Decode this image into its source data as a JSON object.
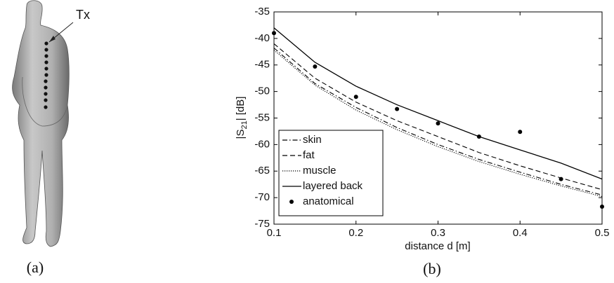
{
  "figure": {
    "annotation": "Tx",
    "panel_labels": [
      "(a)",
      "(b)"
    ]
  },
  "chart_data": {
    "type": "line",
    "xlabel": "distance d [m]",
    "ylabel": [
      "|S",
      "21",
      "| [dB]"
    ],
    "x": [
      0.1,
      0.15,
      0.2,
      0.25,
      0.3,
      0.35,
      0.4,
      0.45,
      0.5
    ],
    "xlim": [
      0.1,
      0.5
    ],
    "xticks": [
      0.1,
      0.2,
      0.3,
      0.4,
      0.5
    ],
    "ylim": [
      -75,
      -35
    ],
    "yticks": [
      -75,
      -70,
      -65,
      -60,
      -55,
      -50,
      -45,
      -40,
      -35
    ],
    "legend": "lower left",
    "series": [
      {
        "name": "skin",
        "color": "#000000",
        "style": "dashdot",
        "values": [
          -41.8,
          -48.5,
          -53,
          -56.8,
          -60,
          -62.8,
          -65.2,
          -67.5,
          -69.5
        ]
      },
      {
        "name": "fat",
        "color": "#000000",
        "style": "dashed",
        "values": [
          -41,
          -47.5,
          -52,
          -55.5,
          -58.5,
          -61.5,
          -64,
          -66.3,
          -68.5
        ]
      },
      {
        "name": "muscle",
        "color": "#000000",
        "style": "dotted",
        "values": [
          -42.2,
          -48.8,
          -53.5,
          -57.2,
          -60.4,
          -63.2,
          -65.6,
          -67.8,
          -69.8
        ]
      },
      {
        "name": "layered back",
        "color": "#000000",
        "style": "solid",
        "values": [
          -38,
          -44.5,
          -49,
          -52.5,
          -55.5,
          -58.5,
          -61,
          -63.5,
          -66.5
        ]
      },
      {
        "name": "anatomical",
        "color": "#000000",
        "style": "markers",
        "values": [
          -39,
          -45.3,
          -51,
          -53.3,
          -56,
          -58.5,
          -57.6,
          -66.5,
          -71.7
        ]
      }
    ]
  }
}
